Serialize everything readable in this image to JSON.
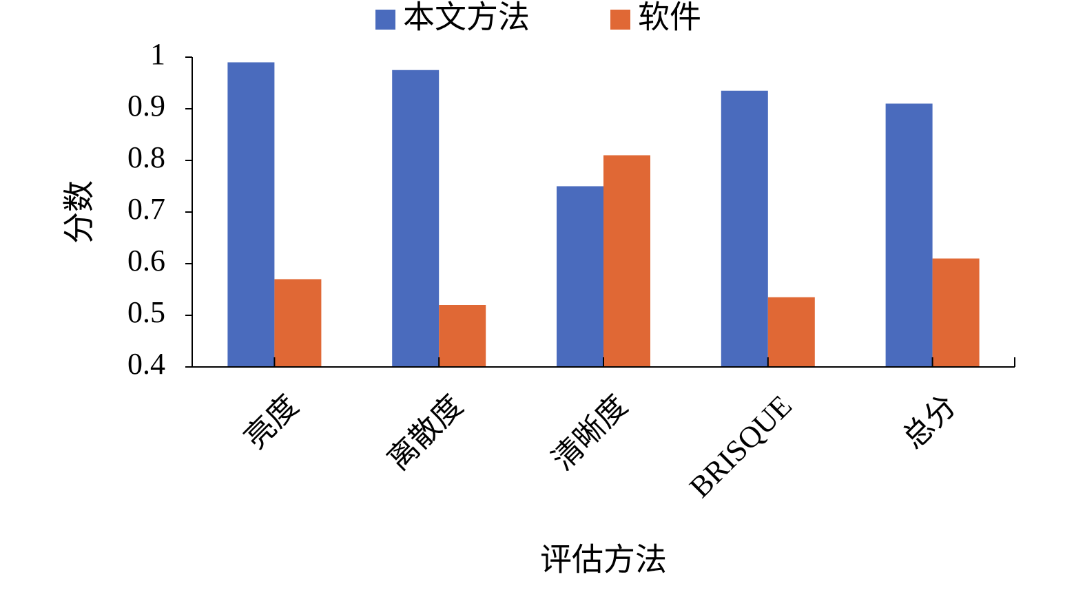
{
  "chart_data": {
    "type": "bar",
    "x_label": "评估方法",
    "y_label": "分数",
    "categories": [
      "亮度",
      "离散度",
      "清晰度",
      "BRISQUE",
      "总分"
    ],
    "series": [
      {
        "name": "本文方法",
        "color": "#4a6bbd",
        "values": [
          0.99,
          0.975,
          0.75,
          0.935,
          0.91
        ]
      },
      {
        "name": "软件",
        "color": "#e06835",
        "values": [
          0.57,
          0.52,
          0.81,
          0.535,
          0.61
        ]
      }
    ],
    "ylim": [
      0.4,
      1
    ],
    "yticks": [
      0.4,
      0.5,
      0.6,
      0.7,
      0.8,
      0.9,
      1
    ],
    "legend": "top",
    "grid": false
  }
}
